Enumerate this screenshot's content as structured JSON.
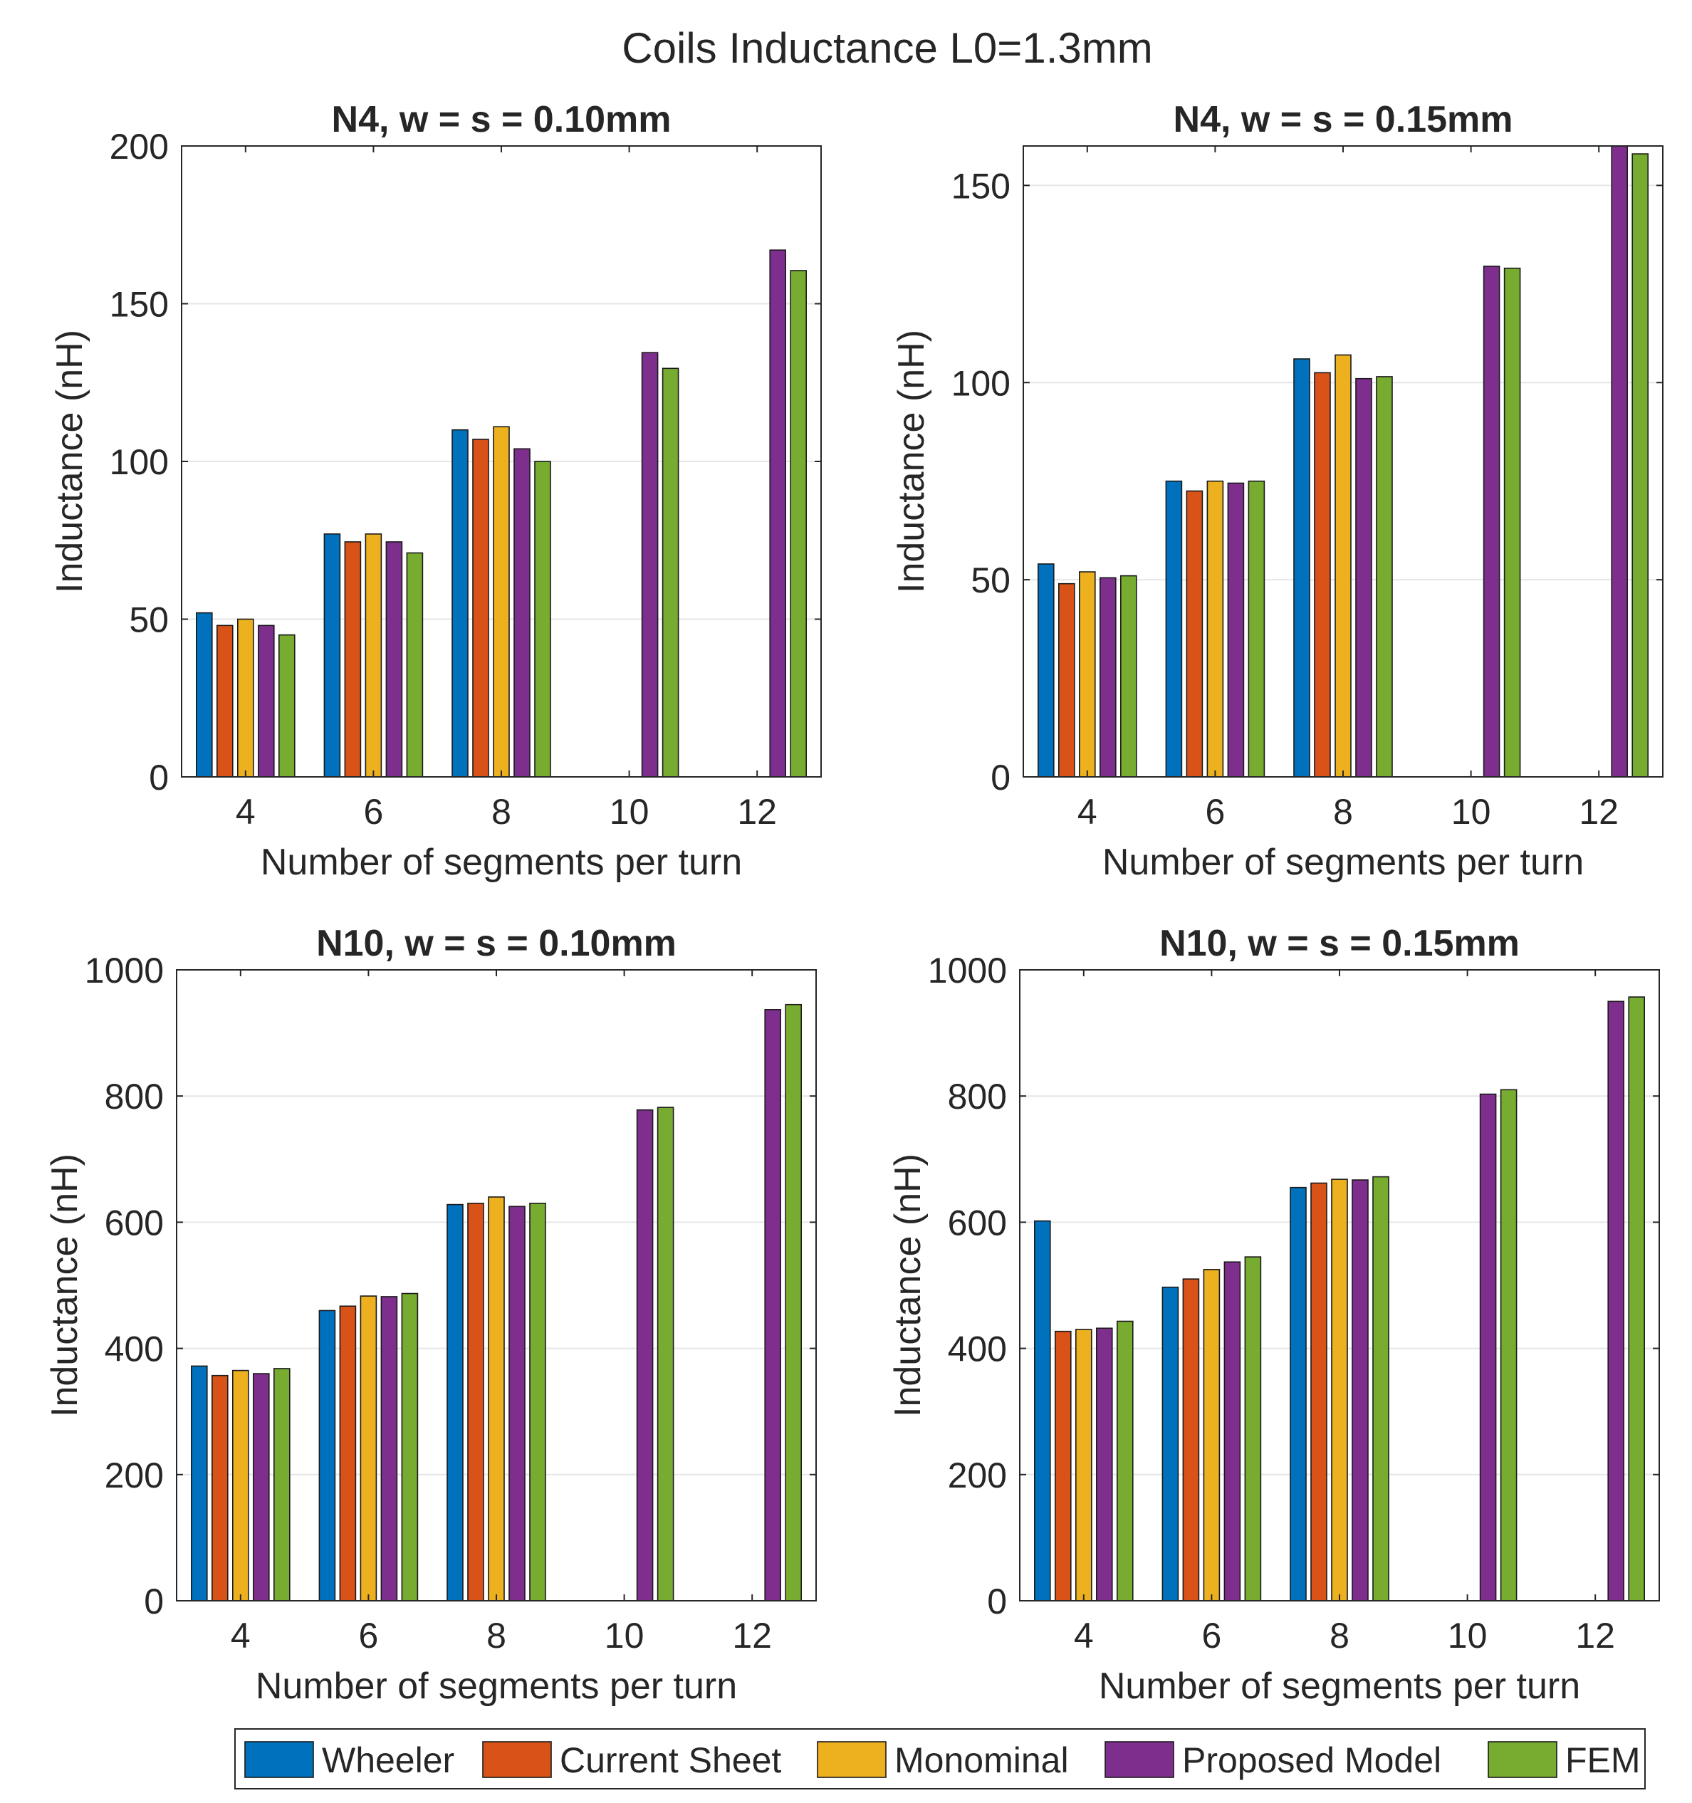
{
  "figure_title": "Coils Inductance L0=1.3mm",
  "series_colors": {
    "Wheeler": "#0072BD",
    "Current Sheet": "#D95319",
    "Monominal": "#EDB120",
    "Proposed Model": "#7E2F8E",
    "FEM": "#77AC30"
  },
  "legend": {
    "items": [
      {
        "label": "Wheeler",
        "color": "#0072BD"
      },
      {
        "label": "Current Sheet",
        "color": "#D95319"
      },
      {
        "label": "Monominal",
        "color": "#EDB120"
      },
      {
        "label": "Proposed Model",
        "color": "#7E2F8E"
      },
      {
        "label": "FEM",
        "color": "#77AC30"
      }
    ],
    "placement": "bottom"
  },
  "chart_data": [
    {
      "type": "bar",
      "title": "N4, w = s = 0.10mm",
      "xlabel": "Number of segments per turn",
      "ylabel": "Inductance (nH)",
      "categories": [
        "4",
        "6",
        "8",
        "10",
        "12"
      ],
      "ylim": [
        0,
        200
      ],
      "yticks": [
        0,
        50,
        100,
        150,
        200
      ],
      "ytick_labels": [
        "0",
        "50",
        "100",
        "150",
        "200"
      ],
      "grid": true,
      "series": [
        {
          "name": "Wheeler",
          "values": [
            52,
            77,
            110,
            null,
            null
          ]
        },
        {
          "name": "Current Sheet",
          "values": [
            48,
            74.5,
            107,
            null,
            null
          ]
        },
        {
          "name": "Monominal",
          "values": [
            50,
            77,
            111,
            null,
            null
          ]
        },
        {
          "name": "Proposed Model",
          "values": [
            48,
            74.5,
            104,
            134.5,
            167
          ]
        },
        {
          "name": "FEM",
          "values": [
            45,
            71,
            100,
            129.5,
            160.5
          ]
        }
      ]
    },
    {
      "type": "bar",
      "title": "N4, w = s = 0.15mm",
      "xlabel": "Number of segments per turn",
      "ylabel": "Inductance (nH)",
      "categories": [
        "4",
        "6",
        "8",
        "10",
        "12"
      ],
      "ylim": [
        0,
        160
      ],
      "yticks": [
        0,
        50,
        100,
        150
      ],
      "ytick_labels": [
        "0",
        "50",
        "100",
        "150"
      ],
      "grid": true,
      "series": [
        {
          "name": "Wheeler",
          "values": [
            54,
            75,
            106,
            null,
            null
          ]
        },
        {
          "name": "Current Sheet",
          "values": [
            49,
            72.5,
            102.5,
            null,
            null
          ]
        },
        {
          "name": "Monominal",
          "values": [
            52,
            75,
            107,
            null,
            null
          ]
        },
        {
          "name": "Proposed Model",
          "values": [
            50.5,
            74.5,
            101,
            129.5,
            160
          ]
        },
        {
          "name": "FEM",
          "values": [
            51,
            75,
            101.5,
            129,
            158
          ]
        }
      ]
    },
    {
      "type": "bar",
      "title": "N10, w = s = 0.10mm",
      "xlabel": "Number of segments per turn",
      "ylabel": "Inductance (nH)",
      "categories": [
        "4",
        "6",
        "8",
        "10",
        "12"
      ],
      "ylim": [
        0,
        1000
      ],
      "yticks": [
        0,
        200,
        400,
        600,
        800,
        1000
      ],
      "ytick_labels": [
        "0",
        "200",
        "400",
        "600",
        "800",
        "1000"
      ],
      "grid": true,
      "series": [
        {
          "name": "Wheeler",
          "values": [
            372,
            460,
            628,
            null,
            null
          ]
        },
        {
          "name": "Current Sheet",
          "values": [
            357,
            467,
            630,
            null,
            null
          ]
        },
        {
          "name": "Monominal",
          "values": [
            365,
            483,
            640,
            null,
            null
          ]
        },
        {
          "name": "Proposed Model",
          "values": [
            360,
            482,
            625,
            778,
            937
          ]
        },
        {
          "name": "FEM",
          "values": [
            368,
            487,
            630,
            782,
            945
          ]
        }
      ]
    },
    {
      "type": "bar",
      "title": "N10, w = s = 0.15mm",
      "xlabel": "Number of segments per turn",
      "ylabel": "Inductance (nH)",
      "categories": [
        "4",
        "6",
        "8",
        "10",
        "12"
      ],
      "ylim": [
        0,
        1000
      ],
      "yticks": [
        0,
        200,
        400,
        600,
        800,
        1000
      ],
      "ytick_labels": [
        "0",
        "200",
        "400",
        "600",
        "800",
        "1000"
      ],
      "grid": true,
      "series": [
        {
          "name": "Wheeler",
          "values": [
            602,
            497,
            655,
            null,
            null
          ]
        },
        {
          "name": "Current Sheet",
          "values": [
            427,
            510,
            662,
            null,
            null
          ]
        },
        {
          "name": "Monominal",
          "values": [
            430,
            525,
            668,
            null,
            null
          ]
        },
        {
          "name": "Proposed Model",
          "values": [
            432,
            537,
            667,
            803,
            950
          ]
        },
        {
          "name": "FEM",
          "values": [
            443,
            545,
            672,
            810,
            957
          ]
        }
      ]
    }
  ]
}
